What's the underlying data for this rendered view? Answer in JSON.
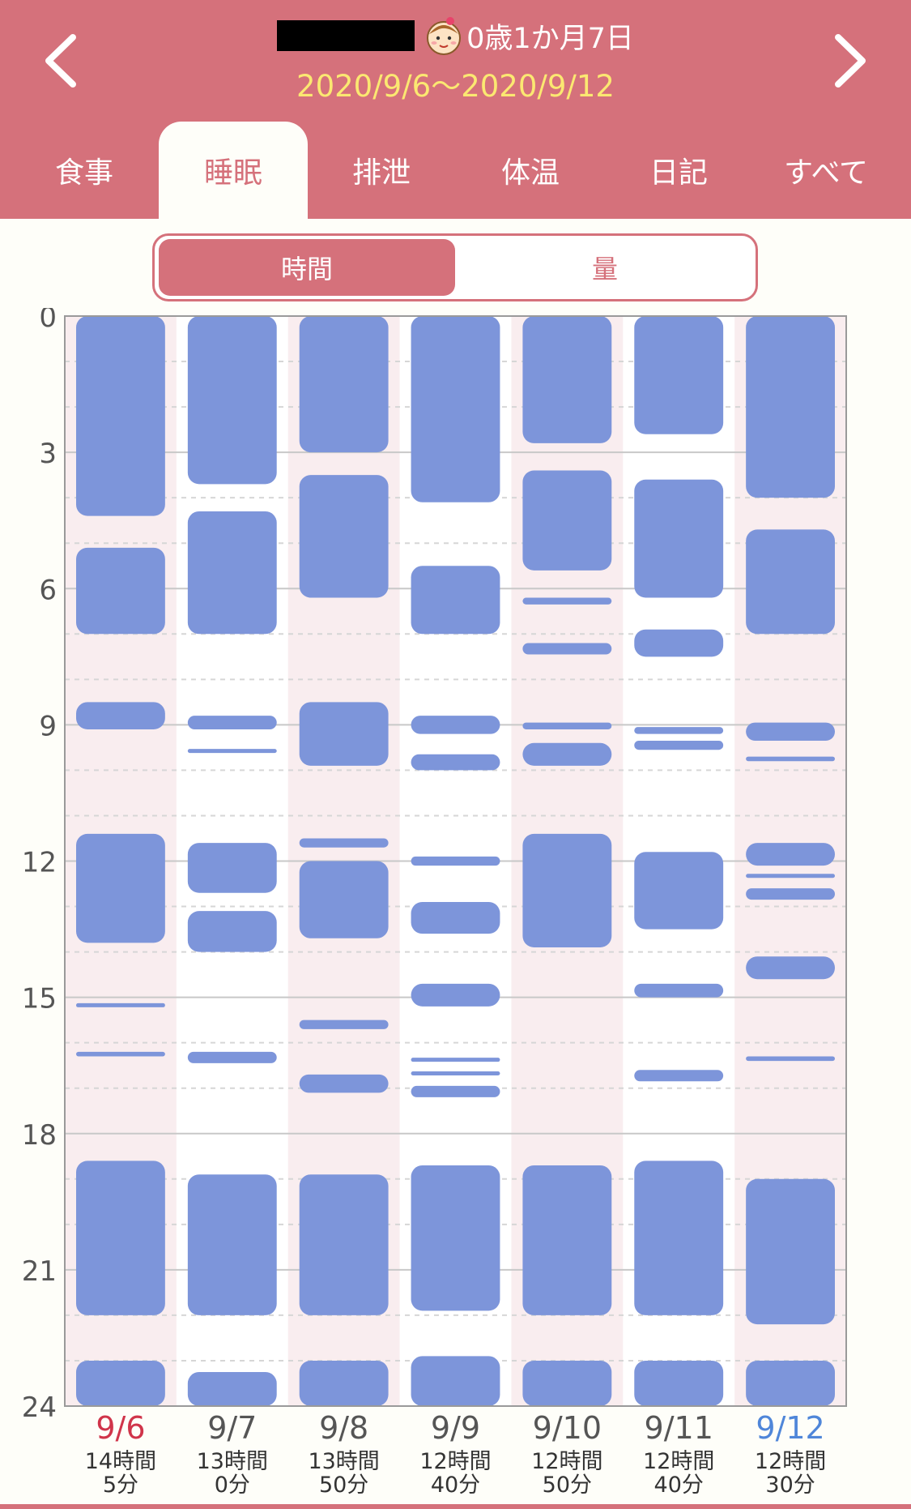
{
  "header": {
    "age": "0歳1か月7日",
    "date_range": "2020/9/6〜2020/9/12",
    "prev_icon": "chevron-left-icon",
    "next_icon": "chevron-right-icon",
    "avatar_icon": "baby-face-icon"
  },
  "tabs": [
    {
      "label": "食事",
      "active": false
    },
    {
      "label": "睡眠",
      "active": true
    },
    {
      "label": "排泄",
      "active": false
    },
    {
      "label": "体温",
      "active": false
    },
    {
      "label": "日記",
      "active": false
    },
    {
      "label": "すべて",
      "active": false
    }
  ],
  "mode_toggle": {
    "time_label": "時間",
    "amount_label": "量",
    "selected": "時間"
  },
  "colors": {
    "brand": "#d5717b",
    "date_range_text": "#fbe871",
    "sleep_bar": "#7d95da",
    "stripe": "#f9edef",
    "sunday": "#d0344a",
    "saturday": "#4f86d9"
  },
  "chart_data": {
    "type": "timeline",
    "title": "睡眠",
    "y_axis": {
      "ticks": [
        "0",
        "3",
        "6",
        "9",
        "12",
        "15",
        "18",
        "21",
        "24"
      ],
      "range_hours": [
        0,
        24
      ]
    },
    "days": [
      {
        "date": "9/6",
        "total_hours": "14時間",
        "total_minutes": "5分",
        "day_type": "sunday",
        "sleeps": [
          [
            0,
            4.4
          ],
          [
            5.1,
            7.0
          ],
          [
            8.5,
            9.1
          ],
          [
            11.4,
            13.8
          ],
          [
            15.15,
            15.2
          ],
          [
            16.2,
            16.3
          ],
          [
            18.6,
            22.0
          ],
          [
            23.0,
            24
          ]
        ]
      },
      {
        "date": "9/7",
        "total_hours": "13時間",
        "total_minutes": "0分",
        "day_type": "weekday",
        "sleeps": [
          [
            0,
            3.7
          ],
          [
            4.3,
            7.0
          ],
          [
            8.8,
            9.1
          ],
          [
            9.55,
            9.6
          ],
          [
            11.6,
            12.7
          ],
          [
            13.1,
            14.0
          ],
          [
            16.2,
            16.45
          ],
          [
            18.9,
            22.0
          ],
          [
            23.25,
            24
          ]
        ]
      },
      {
        "date": "9/8",
        "total_hours": "13時間",
        "total_minutes": "50分",
        "day_type": "weekday",
        "sleeps": [
          [
            0,
            3.0
          ],
          [
            3.5,
            6.2
          ],
          [
            8.5,
            9.9
          ],
          [
            11.5,
            11.7
          ],
          [
            12.0,
            13.7
          ],
          [
            15.5,
            15.7
          ],
          [
            16.7,
            17.1
          ],
          [
            18.9,
            22.0
          ],
          [
            23.0,
            24
          ]
        ]
      },
      {
        "date": "9/9",
        "total_hours": "12時間",
        "total_minutes": "40分",
        "day_type": "weekday",
        "sleeps": [
          [
            0,
            4.1
          ],
          [
            5.5,
            7.0
          ],
          [
            8.8,
            9.2
          ],
          [
            9.65,
            10.0
          ],
          [
            11.9,
            12.1
          ],
          [
            12.9,
            13.6
          ],
          [
            14.7,
            15.2
          ],
          [
            16.35,
            16.4
          ],
          [
            16.65,
            16.7
          ],
          [
            16.95,
            17.2
          ],
          [
            18.7,
            21.9
          ],
          [
            22.9,
            24
          ]
        ]
      },
      {
        "date": "9/10",
        "total_hours": "12時間",
        "total_minutes": "50分",
        "day_type": "weekday",
        "sleeps": [
          [
            0,
            2.8
          ],
          [
            3.4,
            5.6
          ],
          [
            6.2,
            6.35
          ],
          [
            7.2,
            7.45
          ],
          [
            8.95,
            9.1
          ],
          [
            9.4,
            9.9
          ],
          [
            11.4,
            13.9
          ],
          [
            18.7,
            22.0
          ],
          [
            23.0,
            24
          ]
        ]
      },
      {
        "date": "9/11",
        "total_hours": "12時間",
        "total_minutes": "40分",
        "day_type": "weekday",
        "sleeps": [
          [
            0,
            2.6
          ],
          [
            3.6,
            6.2
          ],
          [
            6.9,
            7.5
          ],
          [
            9.05,
            9.2
          ],
          [
            9.35,
            9.55
          ],
          [
            11.8,
            13.5
          ],
          [
            14.7,
            15.0
          ],
          [
            16.6,
            16.85
          ],
          [
            18.6,
            22.0
          ],
          [
            23.0,
            24
          ]
        ]
      },
      {
        "date": "9/12",
        "total_hours": "12時間",
        "total_minutes": "30分",
        "day_type": "saturday",
        "sleeps": [
          [
            0,
            4.0
          ],
          [
            4.7,
            7.0
          ],
          [
            8.95,
            9.35
          ],
          [
            9.7,
            9.8
          ],
          [
            11.6,
            12.1
          ],
          [
            12.3,
            12.35
          ],
          [
            12.6,
            12.85
          ],
          [
            14.1,
            14.6
          ],
          [
            16.3,
            16.4
          ],
          [
            19.0,
            22.2
          ],
          [
            23.0,
            24
          ]
        ]
      }
    ]
  }
}
